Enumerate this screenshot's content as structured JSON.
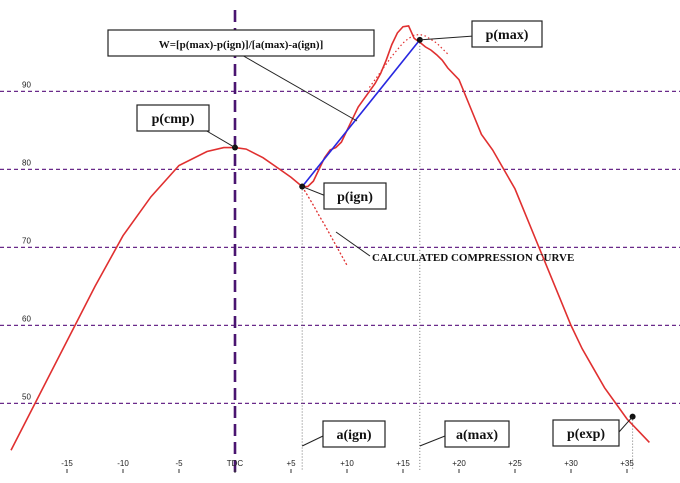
{
  "chart_data": {
    "type": "line",
    "title": "",
    "xlabel": "",
    "ylabel": "",
    "x_tick_labels": [
      "-15",
      "-10",
      "-5",
      "TDC",
      "+5",
      "+10",
      "+15",
      "+20",
      "+25",
      "+30",
      "+35"
    ],
    "x_ticks": [
      -15,
      -10,
      -5,
      0,
      5,
      10,
      15,
      20,
      25,
      30,
      35
    ],
    "y_ticks": [
      50,
      60,
      70,
      80,
      90
    ],
    "y_tick_labels": [
      "50",
      "60",
      "70",
      "80",
      "90"
    ],
    "xlim": [
      -20,
      37
    ],
    "ylim": [
      43,
      100
    ],
    "grid": "horizontal dashed",
    "series": [
      {
        "key": "measured_pressure",
        "color": "#e03030",
        "x": [
          -20,
          -17.5,
          -15,
          -12.5,
          -10,
          -7.5,
          -5,
          -2.5,
          -1,
          0,
          1,
          2.5,
          4,
          5,
          6,
          6.5,
          7,
          7.5,
          8,
          8.5,
          9,
          9.5,
          10,
          10.5,
          11,
          11.5,
          12,
          12.5,
          13,
          13.5,
          14,
          14.5,
          15,
          15.5,
          16,
          16.5,
          17,
          17.5,
          18,
          18.5,
          19,
          20,
          21,
          22,
          23,
          24,
          25,
          26,
          27,
          28,
          29,
          30,
          31,
          32,
          33,
          34,
          35,
          36,
          37
        ],
        "y": [
          44,
          51,
          58,
          65,
          71.5,
          76.5,
          80.5,
          82.3,
          82.8,
          82.8,
          82.6,
          81.5,
          80,
          79,
          77.8,
          77.8,
          78.5,
          80,
          81.5,
          82.5,
          82.8,
          83.5,
          85,
          86.5,
          88,
          89,
          90,
          91,
          92.3,
          94,
          96,
          97.5,
          98.3,
          98.4,
          96.8,
          96.3,
          95.7,
          95.3,
          94.7,
          94,
          93,
          91.5,
          88,
          84.5,
          82.5,
          80,
          77.5,
          74,
          70.5,
          67,
          63.5,
          60,
          57,
          54.5,
          52,
          50,
          48,
          46.5,
          45
        ]
      },
      {
        "key": "calculated_compression",
        "color": "#e03030",
        "x": [
          6,
          6.5,
          7,
          7.5,
          8,
          8.5,
          9,
          9.5,
          10
        ],
        "y": [
          77.8,
          76.6,
          75.4,
          74.1,
          72.9,
          71.6,
          70.3,
          69,
          67.7
        ]
      },
      {
        "key": "ignition_to_max_line",
        "color": "#2828e0",
        "x": [
          6,
          16.5
        ],
        "y": [
          77.8,
          96.6
        ]
      },
      {
        "key": "dotted_overlay",
        "color": "#e03030",
        "x": [
          12,
          13,
          14,
          15,
          15.5,
          16,
          16.5,
          17,
          18,
          19
        ],
        "y": [
          90.5,
          92.5,
          94.5,
          96.2,
          96.8,
          97.2,
          97.3,
          97.1,
          96.2,
          94.8
        ]
      }
    ],
    "tdc_x": 0,
    "points": [
      {
        "key": "p_cmp",
        "label": "p(cmp)",
        "x": 0,
        "y": 82.8
      },
      {
        "key": "p_ign",
        "label": "p(ign)",
        "x": 6,
        "y": 77.8
      },
      {
        "key": "p_max",
        "label": "p(max)",
        "x": 16.5,
        "y": 96.6
      },
      {
        "key": "p_exp",
        "label": "p(exp)",
        "x": 35.5,
        "y": 48.3
      }
    ],
    "axis_markers": [
      {
        "key": "a_ign",
        "label": "a(ign)",
        "x": 6
      },
      {
        "key": "a_max",
        "label": "a(max)",
        "x": 16.5
      },
      {
        "key": "a_exp",
        "x": 35.5
      }
    ],
    "formula": "W=[p(max)-p(ign)]/[a(max)-a(ign)]",
    "curve_annotation": "CALCULATED COMPRESSION CURVE"
  }
}
